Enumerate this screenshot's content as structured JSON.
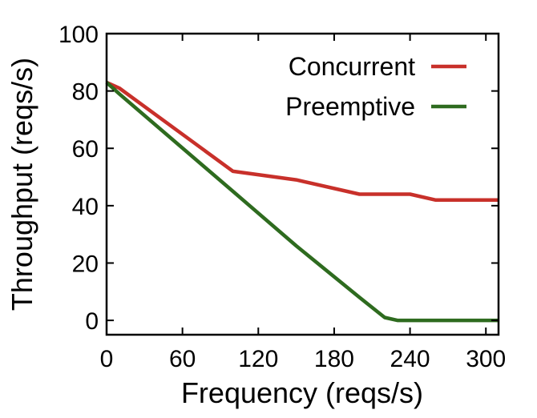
{
  "chart_data": {
    "type": "line",
    "xlabel": "Frequency (reqs/s)",
    "ylabel": "Throughput (reqs/s)",
    "xlim": [
      0,
      310
    ],
    "ylim": [
      -5,
      100
    ],
    "xticks": [
      0,
      60,
      120,
      180,
      240,
      300
    ],
    "yticks": [
      0,
      20,
      40,
      60,
      80,
      100
    ],
    "grid": false,
    "legend_position": "top-right",
    "series": [
      {
        "name": "Concurrent",
        "color": "#c8302a",
        "x": [
          0,
          10,
          100,
          150,
          200,
          240,
          260,
          310
        ],
        "y": [
          83,
          81,
          52,
          49,
          44,
          44,
          42,
          42
        ]
      },
      {
        "name": "Preemptive",
        "color": "#2e6b1f",
        "x": [
          0,
          10,
          100,
          150,
          200,
          220,
          230,
          310
        ],
        "y": [
          83,
          79,
          45,
          26,
          8,
          1,
          0,
          0
        ]
      }
    ]
  }
}
